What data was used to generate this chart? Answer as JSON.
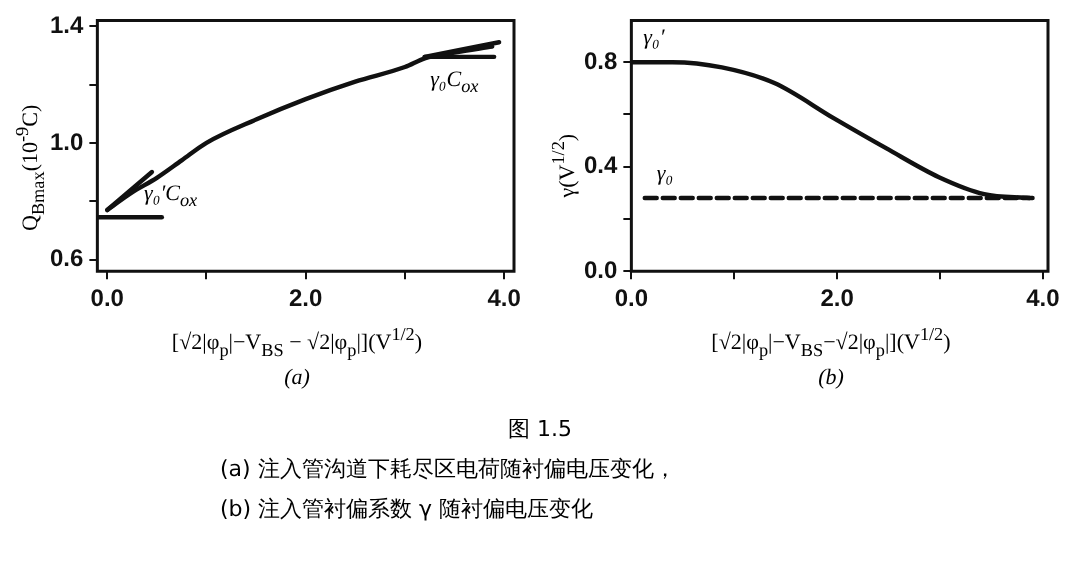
{
  "chart_data": [
    {
      "type": "line",
      "subtitle": "(a)",
      "xlabel": "[√2|φ$_{p}$|−V$_{BS}$ − √2|φ$_{p}$|](V$^{1/2}$)",
      "ylabel": "Q$_{Bmax}$(10$^{-9}$C)",
      "xlim": [
        -0.1,
        4.1
      ],
      "ylim": [
        0.56,
        1.42
      ],
      "xticks": [
        {
          "value": 0,
          "label": "0.0"
        },
        {
          "value": 1,
          "label": null
        },
        {
          "value": 2,
          "label": "2.0"
        },
        {
          "value": 3,
          "label": null
        },
        {
          "value": 4,
          "label": "4.0"
        }
      ],
      "yticks": [
        {
          "value": 0.6,
          "label": "0.6"
        },
        {
          "value": 0.8,
          "label": null
        },
        {
          "value": 1.0,
          "label": "1.0"
        },
        {
          "value": 1.2,
          "label": null
        },
        {
          "value": 1.4,
          "label": "1.4"
        }
      ],
      "grid": false,
      "legend": false,
      "marker": "none",
      "series": [
        {
          "type": "line",
          "color": "#111111",
          "x": [
            0,
            0.25,
            0.5,
            0.75,
            1.0,
            1.5,
            2.0,
            2.5,
            3.0,
            3.2,
            3.5,
            3.88
          ],
          "values": [
            0.77,
            0.83,
            0.88,
            0.94,
            1.0,
            1.08,
            1.15,
            1.21,
            1.26,
            1.29,
            1.31,
            1.33
          ]
        },
        {
          "type": "line",
          "color": "#111111",
          "x": [
            0,
            0.45
          ],
          "values": [
            0.77,
            0.9
          ]
        },
        {
          "type": "line",
          "color": "#111111",
          "x": [
            -0.1,
            0.55
          ],
          "values": [
            0.745,
            0.745
          ]
        },
        {
          "type": "line",
          "color": "#111111",
          "x": [
            3.2,
            3.95
          ],
          "values": [
            1.295,
            1.345
          ]
        },
        {
          "type": "line",
          "color": "#111111",
          "x": [
            3.2,
            3.9
          ],
          "values": [
            1.295,
            1.295
          ]
        }
      ],
      "annotations": [
        {
          "text": "γ₀′C$_{ox}$",
          "x": 0.25,
          "y": 0.745
        },
        {
          "text": "γ₀C$_{ox}$",
          "x": 3.9,
          "y": 1.295
        },
        "图 1.5",
        "(a) 注入管沟道下耗尽区电荷随衬偏电压变化，",
        "(b) 注入管衬偏系数 γ 随衬偏电压变化"
      ]
    },
    {
      "type": "line",
      "subtitle": "(b)",
      "xlabel": "[√2|φ$_{p}$|−V$_{BS}$−√2|φ$_{p}$|](V$^{1/2}$)",
      "ylabel": "γ(V$^{1/2}$)",
      "xlim": [
        0,
        4.05
      ],
      "ylim": [
        0,
        0.96
      ],
      "xticks": [
        {
          "value": 0,
          "label": "0.0"
        },
        {
          "value": 1,
          "label": null
        },
        {
          "value": 2,
          "label": "2.0"
        },
        {
          "value": 3,
          "label": null
        },
        {
          "value": 4,
          "label": "4.0"
        }
      ],
      "yticks": [
        {
          "value": 0,
          "label": "0.0"
        },
        {
          "value": 0.2,
          "label": null
        },
        {
          "value": 0.4,
          "label": "0.4"
        },
        {
          "value": 0.6,
          "label": null
        },
        {
          "value": 0.8,
          "label": "0.8"
        }
      ],
      "grid": false,
      "legend": false,
      "marker": "none",
      "series": [
        {
          "type": "line",
          "color": "#111111",
          "line_style": "solid",
          "x": [
            0,
            0.4,
            0.88,
            1.39,
            1.97,
            2.48,
            2.99,
            3.43,
            3.87
          ],
          "values": [
            0.8,
            0.8,
            0.78,
            0.72,
            0.585,
            0.47,
            0.36,
            0.295,
            0.28
          ]
        },
        {
          "type": "line",
          "color": "#111111",
          "line_style": "dashed",
          "x": [
            0.13,
            3.9
          ],
          "values": [
            0.28,
            0.28
          ]
        }
      ],
      "annotations": [
        {
          "text": "γ₀′",
          "x": 0,
          "y": 0.8
        },
        {
          "text": "γ₀",
          "x": 0.13,
          "y": 0.28
        }
      ]
    }
  ]
}
